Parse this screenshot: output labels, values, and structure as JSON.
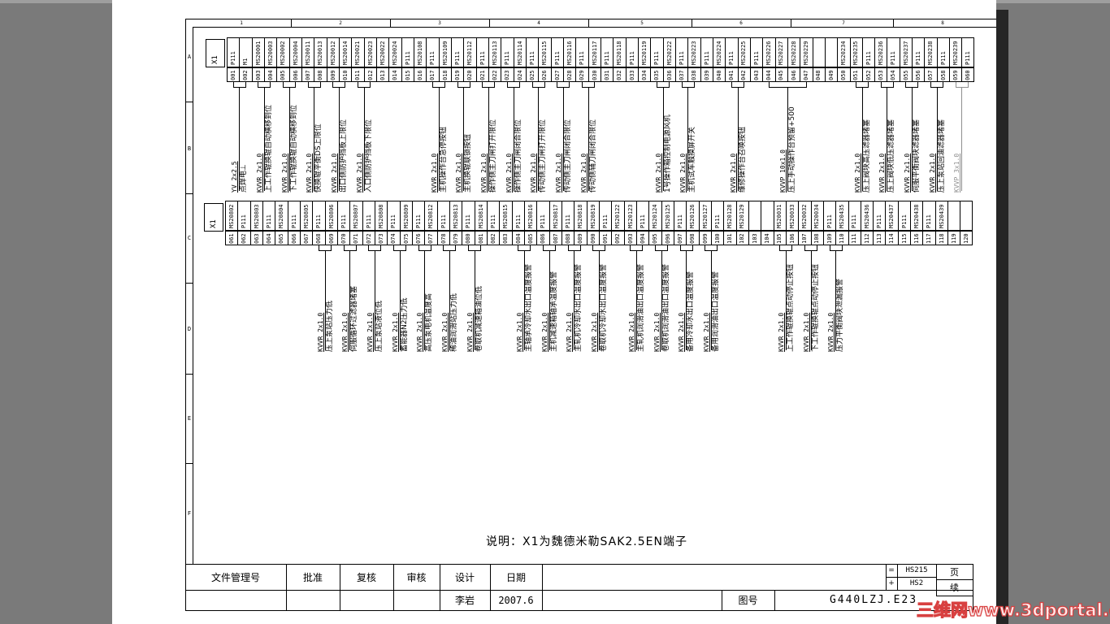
{
  "watermark": "三维网www.3dportal.cn",
  "note": "说明：X1为魏德米勒SAK2.5EN端子",
  "frame": {
    "zone_numbers": [
      "1",
      "2",
      "3",
      "4",
      "5",
      "6",
      "7",
      "8"
    ],
    "zone_letters": [
      "A",
      "B",
      "C",
      "D",
      "E",
      "F"
    ]
  },
  "title_block": {
    "headers": [
      "文件管理号",
      "批准",
      "复核",
      "审核",
      "设计",
      "日期"
    ],
    "designer": "李岩",
    "date": "2007.6",
    "drawing_no_label": "图号",
    "drawing_no": "G440LZJ.E23",
    "function_ref": {
      "symbol": "=",
      "value": "HS215"
    },
    "location_ref": {
      "symbol": "+",
      "value": "HS2"
    },
    "page_label": "页",
    "continued_label": "续"
  },
  "strips": [
    {
      "label": "X1",
      "terminals": [
        [
          "001",
          "P111"
        ],
        [
          "002",
          "M1"
        ],
        [
          "003",
          "MS20001"
        ],
        [
          "004",
          "MS20003"
        ],
        [
          "005",
          "MS20002"
        ],
        [
          "006",
          "MS20004"
        ],
        [
          "007",
          "MS20011"
        ],
        [
          "008",
          "MS20013"
        ],
        [
          "009",
          "MS20012"
        ],
        [
          "010",
          "MS20014"
        ],
        [
          "011",
          "MS20021"
        ],
        [
          "012",
          "MS20023"
        ],
        [
          "013",
          "MS20022"
        ],
        [
          "014",
          "MS20024"
        ],
        [
          "015",
          "P111"
        ],
        [
          "016",
          "MS20108"
        ],
        [
          "017",
          "P111"
        ],
        [
          "018",
          "MS20109"
        ],
        [
          "019",
          "P111"
        ],
        [
          "020",
          "MS20112"
        ],
        [
          "021",
          "P111"
        ],
        [
          "022",
          "MS20113"
        ],
        [
          "023",
          "P111"
        ],
        [
          "024",
          "MS20114"
        ],
        [
          "025",
          "P111"
        ],
        [
          "026",
          "MS20115"
        ],
        [
          "027",
          "P111"
        ],
        [
          "028",
          "MS20116"
        ],
        [
          "029",
          "P111"
        ],
        [
          "030",
          "MS20117"
        ],
        [
          "031",
          "P111"
        ],
        [
          "032",
          "MS20118"
        ],
        [
          "033",
          "P111"
        ],
        [
          "034",
          "MS20119"
        ],
        [
          "035",
          "P111"
        ],
        [
          "036",
          "MS20222"
        ],
        [
          "037",
          "P111"
        ],
        [
          "038",
          "MS20223"
        ],
        [
          "039",
          "P111"
        ],
        [
          "040",
          "MS20224"
        ],
        [
          "041",
          "P111"
        ],
        [
          "042",
          "MS20225"
        ],
        [
          "043",
          "P111"
        ],
        [
          "044",
          "MS20226"
        ],
        [
          "045",
          "MS20227"
        ],
        [
          "046",
          "MS20228"
        ],
        [
          "047",
          "MS20229"
        ],
        [
          "048",
          ""
        ],
        [
          "049",
          ""
        ],
        [
          "050",
          "MS20234"
        ],
        [
          "051",
          "MS20235"
        ],
        [
          "052",
          "P111"
        ],
        [
          "053",
          "MS20236"
        ],
        [
          "054",
          "P111"
        ],
        [
          "055",
          "MS20237"
        ],
        [
          "056",
          "P111"
        ],
        [
          "057",
          "MS20238"
        ],
        [
          "058",
          "P111"
        ],
        [
          "059",
          "MS20239"
        ],
        [
          "060",
          "P111"
        ]
      ],
      "groups": [
        {
          "from": 1,
          "to": 2,
          "cable": "YV 2x2.5",
          "desc": "点焊电⊥"
        },
        {
          "from": 3,
          "to": 4,
          "cable": "KVVR 2x1.0",
          "desc": "上工作辊换辊自动横移到位"
        },
        {
          "from": 5,
          "to": 6,
          "cable": "KVVR 2x1.0",
          "desc": "下工作辊换辊自动横移到位"
        },
        {
          "from": 7,
          "to": 8,
          "cable": "KVVR 2x1.0",
          "desc": "快换辊平衡DS上限位"
        },
        {
          "from": 9,
          "to": 10,
          "cable": "KVVR 2x1.0",
          "desc": "出口侧防护挡板上限位"
        },
        {
          "from": 11,
          "to": 12,
          "cable": "KVVR 2x1.0",
          "desc": "入口侧防护挡板下限位"
        },
        {
          "from": 17,
          "to": 18,
          "cable": "KVVR 2x1.0",
          "desc": "主机操作台急停按钮"
        },
        {
          "from": 19,
          "to": 20,
          "cable": "KVVR 2x1.0",
          "desc": "主机换辊联锁按钮"
        },
        {
          "from": 21,
          "to": 22,
          "cable": "KVVR 2x1.0",
          "desc": "操作侧主刀闸打开限位"
        },
        {
          "from": 23,
          "to": 24,
          "cable": "KVVR 2x1.0",
          "desc": "操作侧主刀闸闭合限位"
        },
        {
          "from": 25,
          "to": 26,
          "cable": "KVVR 2x1.0",
          "desc": "传动侧主刀闸打开限位"
        },
        {
          "from": 27,
          "to": 28,
          "cable": "KVVR 2x1.0",
          "desc": "传动侧主刀闸闭合限位"
        },
        {
          "from": 29,
          "to": 30,
          "cable": "KVVR 2x1.0",
          "desc": "传动侧辅刀闸闭合限位"
        },
        {
          "from": 35,
          "to": 36,
          "cable": "KVVR 2x1.0",
          "desc": "1号操作箱控制电源风机"
        },
        {
          "from": 37,
          "to": 38,
          "cable": "KVVR 2x1.0",
          "desc": "主机试车触摸屏开关"
        },
        {
          "from": 41,
          "to": 42,
          "cable": "KVVR 2x1.0",
          "desc": "维修操作台召唤按钮"
        },
        {
          "from": 44,
          "to": 47,
          "cable": "KVVP 10x1.0",
          "desc": "压上手动操作台预留+500"
        },
        {
          "from": 51,
          "to": 52,
          "cable": "KVVR 2x1.0",
          "desc": "压上阀块高压滤器堵塞"
        },
        {
          "from": 53,
          "to": 54,
          "cable": "KVVR 2x1.0",
          "desc": "压上阀块低压滤器堵塞"
        },
        {
          "from": 55,
          "to": 56,
          "cable": "KVVR 2x1.0",
          "desc": "伺服平衡阀块滤器堵塞"
        },
        {
          "from": 57,
          "to": 58,
          "cable": "KVVR 2x1.0",
          "desc": "压上泵站回油滤器堵塞"
        },
        {
          "from": 59,
          "to": 60,
          "cable": "KVVP 3x1.0",
          "desc": "",
          "faint": true
        }
      ]
    },
    {
      "label": "X1",
      "terminals": [
        [
          "061",
          "MS20802"
        ],
        [
          "062",
          "P111"
        ],
        [
          "063",
          "MS20803"
        ],
        [
          "064",
          "P111"
        ],
        [
          "065",
          "MS20804"
        ],
        [
          "066",
          "P111"
        ],
        [
          "067",
          "MS20805"
        ],
        [
          "068",
          "P111"
        ],
        [
          "069",
          "MS20806"
        ],
        [
          "070",
          "P111"
        ],
        [
          "071",
          "MS20807"
        ],
        [
          "072",
          "P111"
        ],
        [
          "073",
          "MS20808"
        ],
        [
          "074",
          "P111"
        ],
        [
          "075",
          "MS20809"
        ],
        [
          "076",
          "P111"
        ],
        [
          "077",
          "MS20812"
        ],
        [
          "078",
          "P111"
        ],
        [
          "079",
          "MS20813"
        ],
        [
          "080",
          "P111"
        ],
        [
          "081",
          "MS20814"
        ],
        [
          "082",
          "P111"
        ],
        [
          "083",
          "MS20815"
        ],
        [
          "084",
          "P111"
        ],
        [
          "085",
          "MS20816"
        ],
        [
          "086",
          "P111"
        ],
        [
          "087",
          "MS20817"
        ],
        [
          "088",
          "P111"
        ],
        [
          "089",
          "MS20818"
        ],
        [
          "090",
          "MS20819"
        ],
        [
          "091",
          "P111"
        ],
        [
          "092",
          "MS20122"
        ],
        [
          "093",
          "MS20123"
        ],
        [
          "094",
          "P111"
        ],
        [
          "095",
          "MS20124"
        ],
        [
          "096",
          "MS20125"
        ],
        [
          "097",
          "P111"
        ],
        [
          "098",
          "MS20126"
        ],
        [
          "099",
          "MS20127"
        ],
        [
          "100",
          "P111"
        ],
        [
          "101",
          "MS20128"
        ],
        [
          "102",
          "MS20129"
        ],
        [
          "103",
          ""
        ],
        [
          "104",
          ""
        ],
        [
          "105",
          "MS20031"
        ],
        [
          "106",
          "MS20033"
        ],
        [
          "107",
          "MS20032"
        ],
        [
          "108",
          "MS20034"
        ],
        [
          "109",
          "P111"
        ],
        [
          "110",
          "MS20435"
        ],
        [
          "111",
          "P111"
        ],
        [
          "112",
          "MS20436"
        ],
        [
          "113",
          "P111"
        ],
        [
          "114",
          "MS20437"
        ],
        [
          "115",
          "P111"
        ],
        [
          "116",
          "MS20438"
        ],
        [
          "117",
          "P111"
        ],
        [
          "118",
          "MS20439"
        ],
        [
          "119",
          ""
        ],
        [
          "120",
          ""
        ]
      ],
      "groups": [
        {
          "from": 68,
          "to": 69,
          "cable": "KVVR 2x1.0",
          "desc": "压上泵站压力低"
        },
        {
          "from": 70,
          "to": 71,
          "cable": "KVVR 2x1.0",
          "desc": "伺服循环过滤器堵塞"
        },
        {
          "from": 72,
          "to": 73,
          "cable": "KVVR 2x1.0",
          "desc": "压上泵站液位低"
        },
        {
          "from": 74,
          "to": 75,
          "cable": "KVVR 2x1.0",
          "desc": "蓄能器N2压力低"
        },
        {
          "from": 76,
          "to": 77,
          "cable": "KVVR 2x1.0",
          "desc": "高压泵电机温度高"
        },
        {
          "from": 78,
          "to": 79,
          "cable": "KVVR 2x1.0",
          "desc": "稀油润滑站压力低"
        },
        {
          "from": 80,
          "to": 81,
          "cable": "KVVR 2x1.0",
          "desc": "卷取机减速箱油位低"
        },
        {
          "from": 84,
          "to": 85,
          "cable": "KVVR 2x1.0",
          "desc": "主轴承冷却水出口温度报警"
        },
        {
          "from": 86,
          "to": 87,
          "cable": "KVVR 2x1.0",
          "desc": "主机减速箱轴承温度报警"
        },
        {
          "from": 88,
          "to": 89,
          "cable": "KVVR 2x1.0",
          "desc": "主轧机冷却水出口温度报警"
        },
        {
          "from": 90,
          "to": 91,
          "cable": "KVVR 2x1.0",
          "desc": "卷取机冷却水出口温度报警"
        },
        {
          "from": 93,
          "to": 94,
          "cable": "KVVR 2x1.0",
          "desc": "主轧机润滑油出口温度报警"
        },
        {
          "from": 95,
          "to": 96,
          "cable": "KVVR 2x1.0",
          "desc": "卷取机润滑油出口温度报警"
        },
        {
          "from": 97,
          "to": 98,
          "cable": "KVVR 2x1.0",
          "desc": "备用冷却水出口温度报警"
        },
        {
          "from": 99,
          "to": 100,
          "cable": "KVVR 2x1.0",
          "desc": "备用润滑油出口温度报警"
        },
        {
          "from": 105,
          "to": 106,
          "cable": "KVVR 2x1.0",
          "desc": "上工作辊换辊点动停止按钮"
        },
        {
          "from": 107,
          "to": 108,
          "cable": "KVVR 2x1.0",
          "desc": "下工作辊换辊点动停止按钮"
        },
        {
          "from": 109,
          "to": 110,
          "cable": "KVVR 2x1.0",
          "desc": "压力平衡阀块泄漏报警"
        }
      ]
    }
  ]
}
